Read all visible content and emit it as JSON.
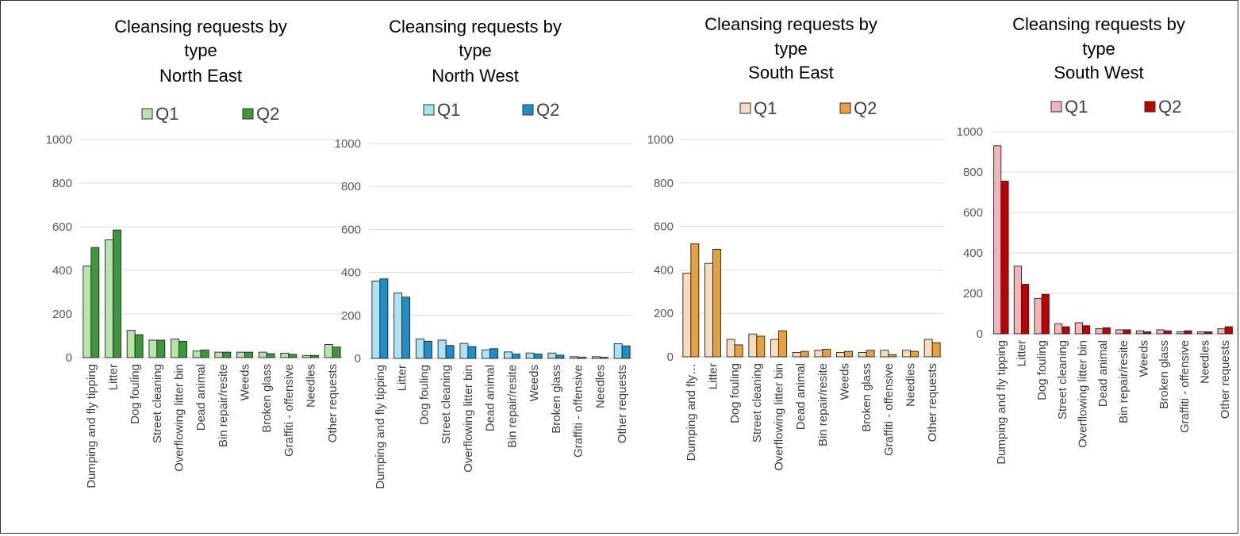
{
  "chart_data": [
    {
      "type": "bar",
      "title": [
        "Cleansing requests by",
        "type",
        "North East"
      ],
      "categories": [
        "Dumping and fly tipping",
        "Litter",
        "Dog fouling",
        "Street cleaning",
        "Overflowing litter bin",
        "Dead animal",
        "Bin repair/resite",
        "Weeds",
        "Broken glass",
        "Graffiti - offensive",
        "Needles",
        "Other requests"
      ],
      "series": [
        {
          "name": "Q1",
          "color": "#b7e4a8",
          "values": [
            420,
            540,
            125,
            80,
            85,
            30,
            25,
            25,
            25,
            20,
            10,
            60
          ]
        },
        {
          "name": "Q2",
          "color": "#3a9a3a",
          "values": [
            505,
            585,
            105,
            80,
            75,
            35,
            25,
            25,
            18,
            15,
            10,
            48
          ]
        }
      ],
      "yticks": [
        "0",
        "200",
        "400",
        "600",
        "800",
        "1000"
      ],
      "ylim": [
        0,
        1000
      ],
      "legend": "top"
    },
    {
      "type": "bar",
      "title": [
        "Cleansing requests by",
        "type",
        "North West"
      ],
      "categories": [
        "Dumping and fly tipping",
        "Litter",
        "Dog fouling",
        "Street cleaning",
        "Overflowing litter bin",
        "Dead animal",
        "Bin repair/resite",
        "Weeds",
        "Broken glass",
        "Graffiti - offensive",
        "Needles",
        "Other requests"
      ],
      "series": [
        {
          "name": "Q1",
          "color": "#a9e4f5",
          "values": [
            360,
            305,
            90,
            85,
            70,
            40,
            30,
            25,
            25,
            8,
            8,
            68
          ]
        },
        {
          "name": "Q2",
          "color": "#1a8fcc",
          "values": [
            370,
            285,
            80,
            60,
            55,
            45,
            20,
            20,
            15,
            5,
            5,
            58
          ]
        }
      ],
      "yticks": [
        "0",
        "200",
        "400",
        "600",
        "800",
        "1000"
      ],
      "ylim": [
        0,
        1000
      ],
      "legend": "top"
    },
    {
      "type": "bar",
      "title": [
        "Cleansing requests by",
        "type",
        "South East"
      ],
      "categories": [
        "Dumping and fly…",
        "Litter",
        "Dog fouling",
        "Street cleaning",
        "Overflowing litter bin",
        "Dead animal",
        "Bin repair/resite",
        "Weeds",
        "Broken glass",
        "Graffiti - offensive",
        "Needles",
        "Other requests"
      ],
      "series": [
        {
          "name": "Q1",
          "color": "#f8dcbf",
          "values": [
            385,
            430,
            80,
            105,
            80,
            20,
            30,
            20,
            20,
            30,
            30,
            80
          ]
        },
        {
          "name": "Q2",
          "color": "#e8a03a",
          "values": [
            520,
            495,
            55,
            95,
            120,
            25,
            35,
            25,
            30,
            10,
            25,
            65
          ]
        }
      ],
      "yticks": [
        "0",
        "200",
        "400",
        "600",
        "800",
        "1000"
      ],
      "ylim": [
        0,
        1000
      ],
      "legend": "top"
    },
    {
      "type": "bar",
      "title": [
        "Cleansing requests by",
        "type",
        "South West"
      ],
      "categories": [
        "Dumping and fly tipping",
        "Litter",
        "Dog fouling",
        "Street cleaning",
        "Overflowing litter bin",
        "Dead animal",
        "Bin repair/resite",
        "Weeds",
        "Broken glass",
        "Graffiti - offensive",
        "Needles",
        "Other requests"
      ],
      "series": [
        {
          "name": "Q1",
          "color": "#f0b5b8",
          "values": [
            930,
            335,
            175,
            50,
            55,
            25,
            20,
            15,
            20,
            10,
            10,
            25
          ]
        },
        {
          "name": "Q2",
          "color": "#c00000",
          "values": [
            755,
            245,
            195,
            35,
            40,
            30,
            20,
            10,
            15,
            15,
            10,
            35
          ]
        }
      ],
      "yticks": [
        "0",
        "200",
        "400",
        "600",
        "800",
        "1000"
      ],
      "ylim": [
        0,
        1000
      ],
      "legend": "top"
    }
  ]
}
